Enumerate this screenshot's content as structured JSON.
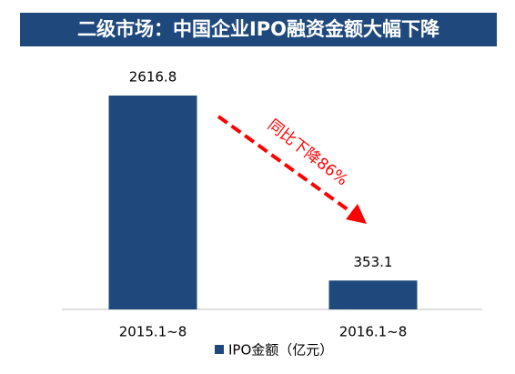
{
  "chart_data": {
    "type": "bar",
    "title": "二级市场：中国企业IPO融资金额大幅下降",
    "categories": [
      "2015.1~8",
      "2016.1~8"
    ],
    "series": [
      {
        "name": "IPO金额（亿元）",
        "color": "#1f497d",
        "values": [
          2616.8,
          353.1
        ]
      }
    ],
    "annotation": "同比下降86%",
    "annotation_color": "#ff0000",
    "legend": "bottom"
  }
}
